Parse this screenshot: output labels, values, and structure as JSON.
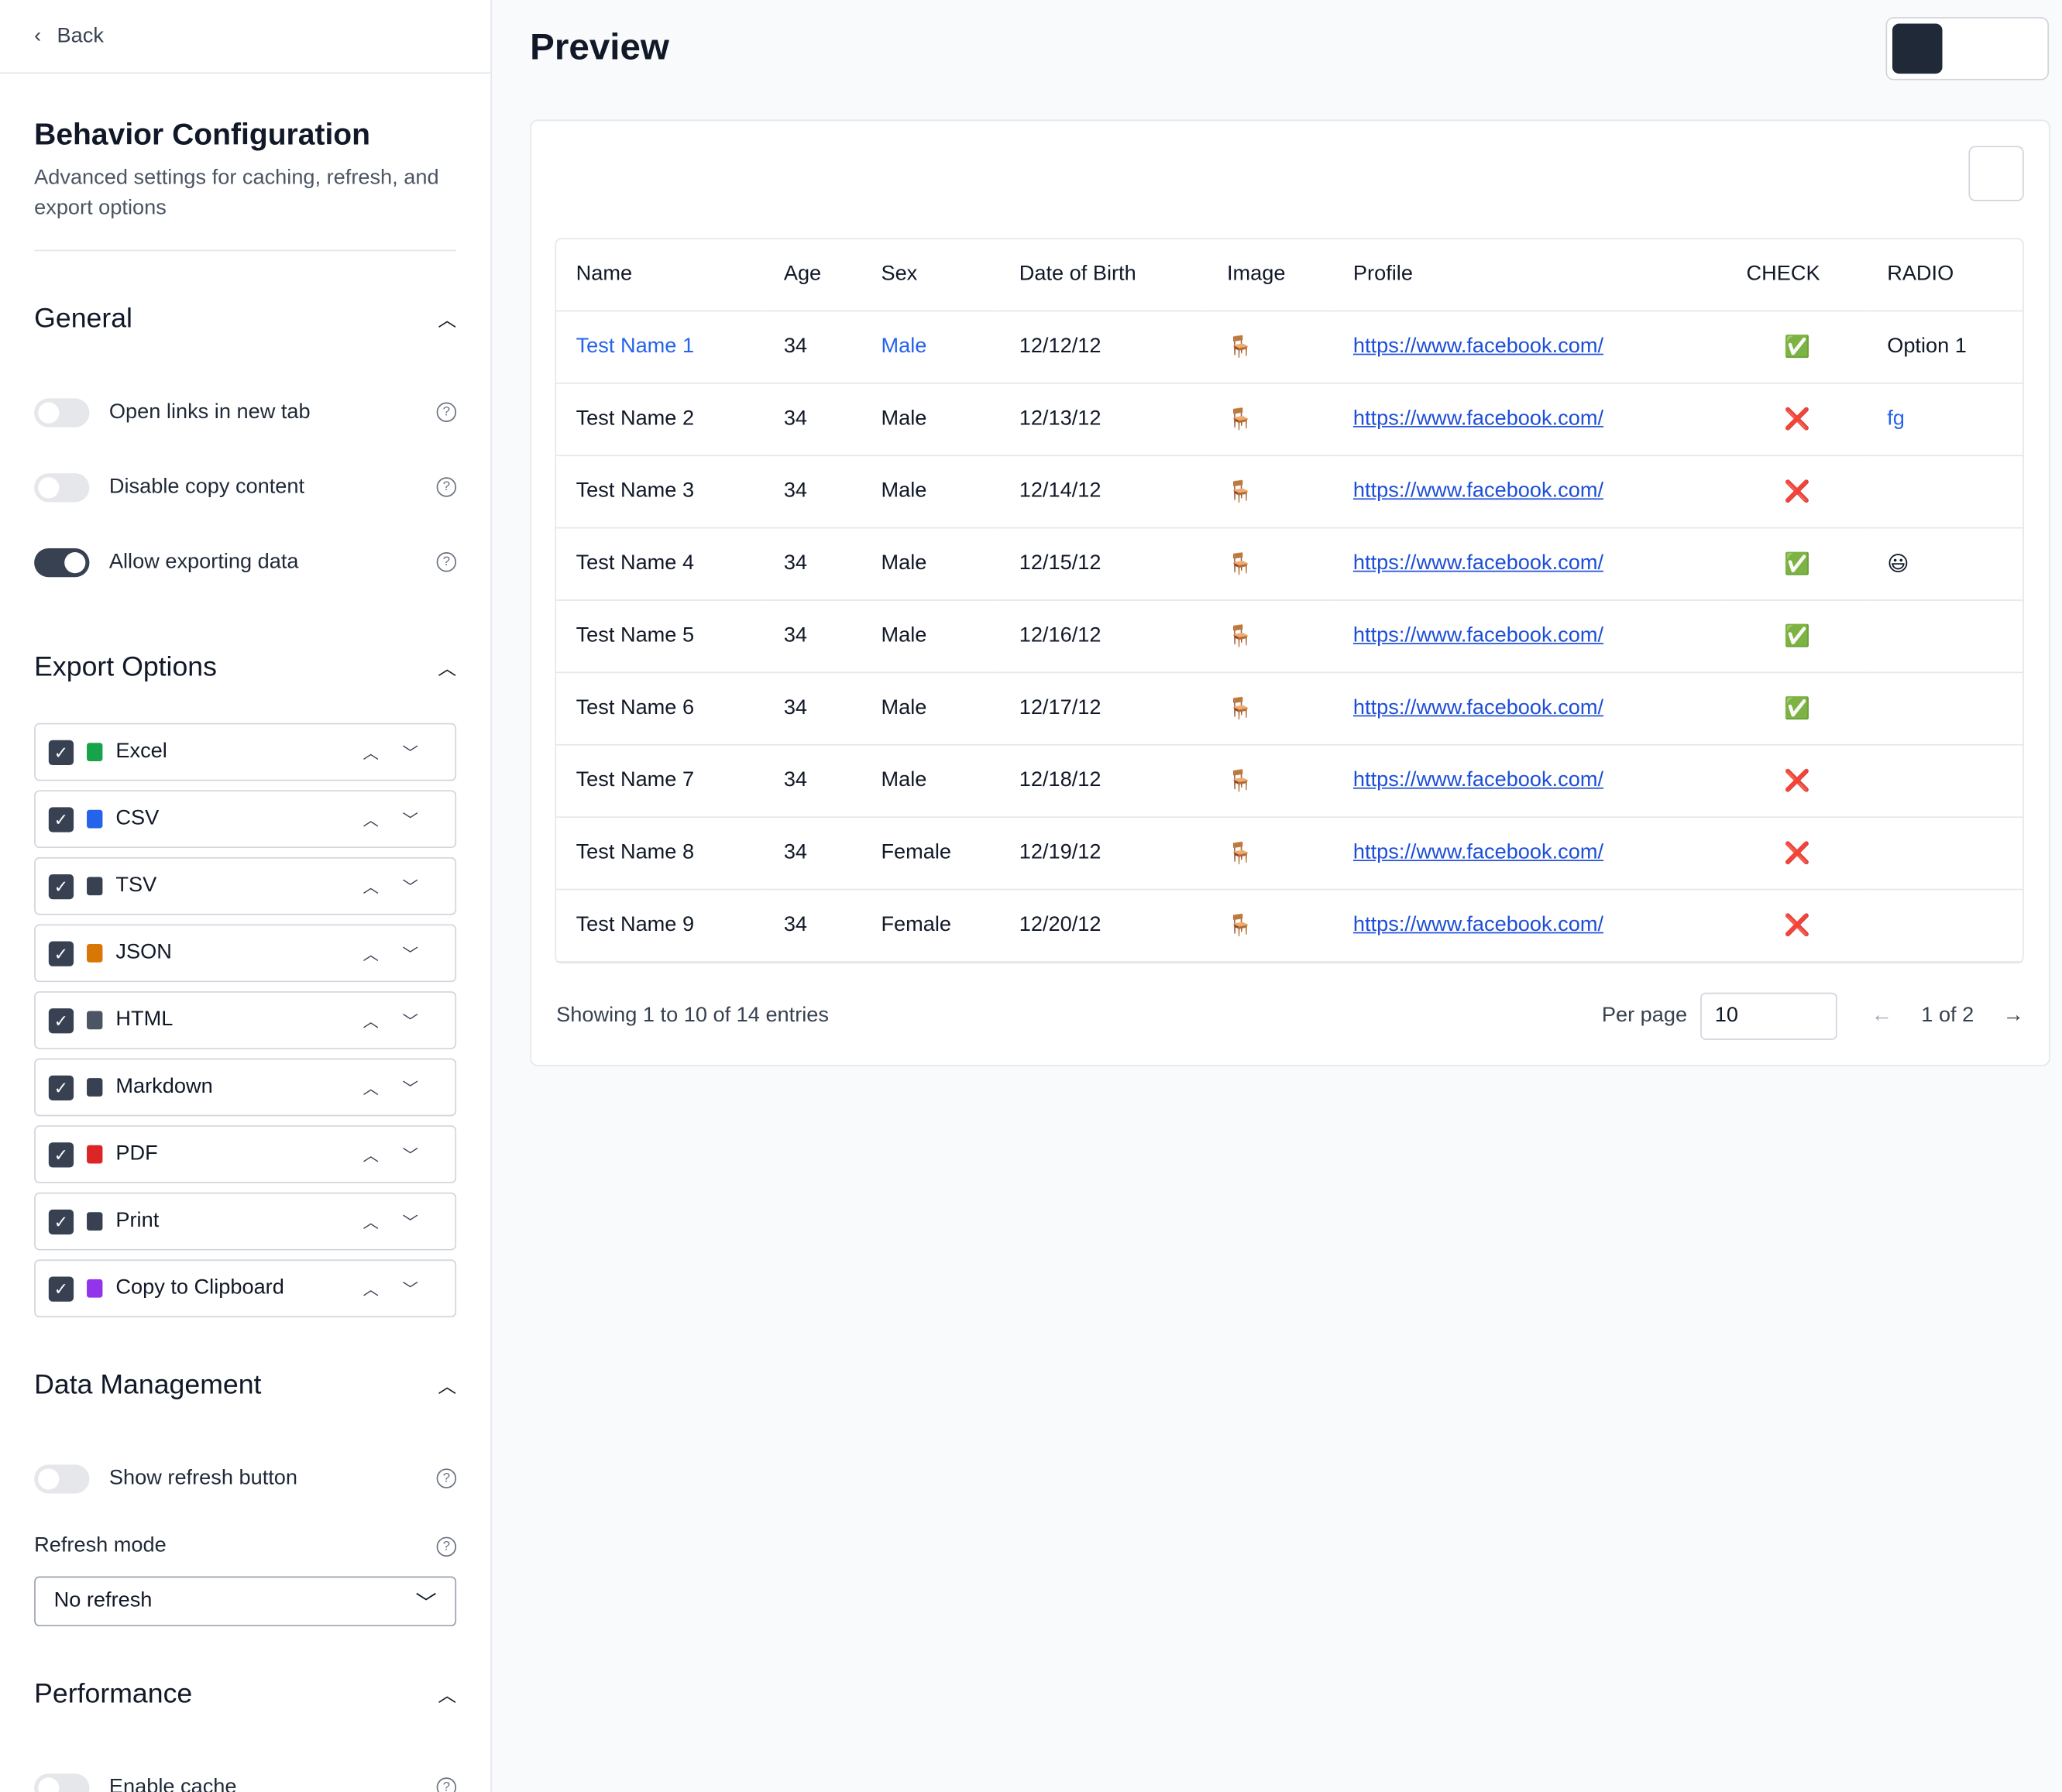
{
  "sidebar": {
    "back": "Back",
    "title": "Behavior Configuration",
    "subtitle": "Advanced settings for caching, refresh, and export options",
    "general": {
      "title": "General",
      "toggles": [
        {
          "label": "Open links in new tab",
          "on": false
        },
        {
          "label": "Disable copy content",
          "on": false
        },
        {
          "label": "Allow exporting data",
          "on": true
        }
      ]
    },
    "export": {
      "title": "Export Options",
      "items": [
        {
          "label": "Excel",
          "color": "#16a34a"
        },
        {
          "label": "CSV",
          "color": "#2563eb"
        },
        {
          "label": "TSV",
          "color": "#374151"
        },
        {
          "label": "JSON",
          "color": "#d97706"
        },
        {
          "label": "HTML",
          "color": "#4b5563"
        },
        {
          "label": "Markdown",
          "color": "#374151"
        },
        {
          "label": "PDF",
          "color": "#dc2626"
        },
        {
          "label": "Print",
          "color": "#374151"
        },
        {
          "label": "Copy to Clipboard",
          "color": "#9333ea"
        }
      ]
    },
    "data_management": {
      "title": "Data Management",
      "toggle": {
        "label": "Show refresh button",
        "on": false
      },
      "refresh_label": "Refresh mode",
      "refresh_value": "No refresh"
    },
    "performance": {
      "title": "Performance",
      "toggle": {
        "label": "Enable cache",
        "on": false
      }
    }
  },
  "preview": {
    "title": "Preview",
    "table": {
      "headers": [
        "Name",
        "Age",
        "Sex",
        "Date of Birth",
        "Image",
        "Profile",
        "CHECK",
        "RADIO"
      ],
      "rows": [
        [
          "Test Name 1",
          "34",
          "Male",
          "12/12/12",
          "🪑",
          "https://www.facebook.com/",
          "✅",
          "Option 1"
        ],
        [
          "Test Name 2",
          "34",
          "Male",
          "12/13/12",
          "🪑",
          "https://www.facebook.com/",
          "❌",
          "fg"
        ],
        [
          "Test Name 3",
          "34",
          "Male",
          "12/14/12",
          "🪑",
          "https://www.facebook.com/",
          "❌",
          null
        ],
        [
          "Test Name 4",
          "34",
          "Male",
          "12/15/12",
          "🪑",
          "https://www.facebook.com/",
          "✅",
          "😃"
        ],
        [
          "Test Name 5",
          "34",
          "Male",
          "12/16/12",
          "🪑",
          "https://www.facebook.com/",
          "✅",
          null
        ],
        [
          "Test Name 6",
          "34",
          "Male",
          "12/17/12",
          "🪑",
          "https://www.facebook.com/",
          "✅",
          null
        ],
        [
          "Test Name 7",
          "34",
          "Male",
          "12/18/12",
          "🪑",
          "https://www.facebook.com/",
          "❌",
          null
        ],
        [
          "Test Name 8",
          "34",
          "Female",
          "12/19/12",
          "🪑",
          "https://www.facebook.com/",
          "❌",
          null
        ],
        [
          "Test Name 9",
          "34",
          "Female",
          "12/20/12",
          "🪑",
          "https://www.facebook.com/",
          "❌",
          null
        ]
      ]
    },
    "footer": {
      "showing": "Showing 1 to 10 of 14 entries",
      "per_page_label": "Per page",
      "per_page": "10",
      "page": "1 of 2"
    }
  }
}
